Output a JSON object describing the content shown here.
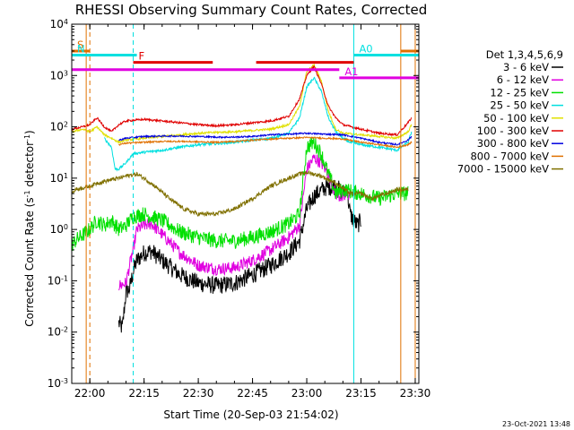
{
  "chart_data": {
    "type": "line",
    "title": "RHESSI Observing Summary Count Rates, Corrected",
    "xlabel": "Start Time (20-Sep-03 21:54:02)",
    "ylabel_main": "Corrected Count Rate (s",
    "ylabel_sup1": "-1",
    "ylabel_mid": " detector",
    "ylabel_sup2": "-1",
    "ylabel_end": ")",
    "y_scale": "log",
    "xlim": [
      "21:55",
      "23:31"
    ],
    "ylim": [
      0.001,
      10000
    ],
    "x_ticks": [
      "22:00",
      "22:15",
      "22:30",
      "22:45",
      "23:00",
      "23:15",
      "23:30"
    ],
    "y_ticks": [
      {
        "base": "10",
        "exp": "-3",
        "value": 0.001
      },
      {
        "base": "10",
        "exp": "-2",
        "value": 0.01
      },
      {
        "base": "10",
        "exp": "-1",
        "value": 0.1
      },
      {
        "base": "10",
        "exp": "0",
        "value": 1
      },
      {
        "base": "10",
        "exp": "1",
        "value": 10
      },
      {
        "base": "10",
        "exp": "2",
        "value": 100
      },
      {
        "base": "10",
        "exp": "3",
        "value": 1000
      },
      {
        "base": "10",
        "exp": "4",
        "value": 10000
      }
    ],
    "legend_title": "Det 1,3,4,5,6,9",
    "legend_position": "right",
    "footer_stamp": "23-Oct-2021 13:48",
    "series": [
      {
        "name": "3 - 6 keV",
        "color": "#000000",
        "noise": 0.35,
        "points": [
          [
            "22:08",
            0.015
          ],
          [
            "22:09",
            0.012
          ],
          [
            "22:10",
            0.06
          ],
          [
            "22:11",
            0.07
          ],
          [
            "22:12",
            0.15
          ],
          [
            "22:13",
            0.25
          ],
          [
            "22:15",
            0.35
          ],
          [
            "22:17",
            0.38
          ],
          [
            "22:20",
            0.25
          ],
          [
            "22:25",
            0.13
          ],
          [
            "22:30",
            0.09
          ],
          [
            "22:35",
            0.08
          ],
          [
            "22:40",
            0.09
          ],
          [
            "22:45",
            0.13
          ],
          [
            "22:50",
            0.2
          ],
          [
            "22:55",
            0.35
          ],
          [
            "22:58",
            0.6
          ],
          [
            "23:00",
            2.5
          ],
          [
            "23:02",
            4.5
          ],
          [
            "23:05",
            6.5
          ],
          [
            "23:08",
            7
          ],
          [
            "23:10",
            5
          ],
          [
            "23:11",
            7
          ],
          [
            "23:12",
            2
          ],
          [
            "23:13",
            1.5
          ],
          [
            "23:14",
            1.2
          ],
          [
            "23:15",
            1.5
          ]
        ]
      },
      {
        "name": "6 - 12 keV",
        "color": "#e000e0",
        "noise": 0.25,
        "points": [
          [
            "22:08",
            0.08
          ],
          [
            "22:10",
            0.09
          ],
          [
            "22:11",
            0.2
          ],
          [
            "22:12",
            0.4
          ],
          [
            "22:13",
            1.0
          ],
          [
            "22:15",
            1.2
          ],
          [
            "22:17",
            1.3
          ],
          [
            "22:20",
            0.8
          ],
          [
            "22:25",
            0.35
          ],
          [
            "22:30",
            0.2
          ],
          [
            "22:35",
            0.17
          ],
          [
            "22:40",
            0.18
          ],
          [
            "22:45",
            0.25
          ],
          [
            "22:50",
            0.4
          ],
          [
            "22:55",
            0.7
          ],
          [
            "22:58",
            1.2
          ],
          [
            "23:00",
            15
          ],
          [
            "23:02",
            25
          ],
          [
            "23:04",
            20
          ],
          [
            "23:06",
            12
          ],
          [
            "23:08",
            5
          ],
          [
            "23:10",
            4
          ],
          [
            "23:12",
            5
          ]
        ]
      },
      {
        "name": "12 - 25 keV",
        "color": "#00e000",
        "noise": 0.3,
        "points": [
          [
            "21:55",
            0.5
          ],
          [
            "21:56",
            0.6
          ],
          [
            "22:00",
            1.0
          ],
          [
            "22:02",
            1.5
          ],
          [
            "22:04",
            1.2
          ],
          [
            "22:06",
            1.5
          ],
          [
            "22:08",
            1.0
          ],
          [
            "22:10",
            1.2
          ],
          [
            "22:12",
            1.8
          ],
          [
            "22:15",
            2.0
          ],
          [
            "22:20",
            1.5
          ],
          [
            "22:25",
            0.9
          ],
          [
            "22:30",
            0.7
          ],
          [
            "22:35",
            0.6
          ],
          [
            "22:40",
            0.6
          ],
          [
            "22:45",
            0.7
          ],
          [
            "22:50",
            0.9
          ],
          [
            "22:55",
            1.3
          ],
          [
            "22:58",
            2
          ],
          [
            "23:00",
            40
          ],
          [
            "23:02",
            50
          ],
          [
            "23:04",
            30
          ],
          [
            "23:06",
            12
          ],
          [
            "23:08",
            5
          ],
          [
            "23:10",
            6
          ],
          [
            "23:15",
            5
          ],
          [
            "23:20",
            4
          ],
          [
            "23:25",
            5
          ],
          [
            "23:28",
            5
          ]
        ]
      },
      {
        "name": "25 - 50 keV",
        "color": "#00e0e0",
        "noise": 0.05,
        "points": [
          [
            "22:04",
            60
          ],
          [
            "22:06",
            40
          ],
          [
            "22:07",
            15
          ],
          [
            "22:08",
            15
          ],
          [
            "22:10",
            20
          ],
          [
            "22:12",
            30
          ],
          [
            "22:15",
            32
          ],
          [
            "22:20",
            35
          ],
          [
            "22:25",
            40
          ],
          [
            "22:30",
            45
          ],
          [
            "22:35",
            47
          ],
          [
            "22:40",
            50
          ],
          [
            "22:45",
            55
          ],
          [
            "22:50",
            60
          ],
          [
            "22:55",
            75
          ],
          [
            "22:58",
            150
          ],
          [
            "23:00",
            600
          ],
          [
            "23:02",
            900
          ],
          [
            "23:04",
            500
          ],
          [
            "23:06",
            150
          ],
          [
            "23:08",
            80
          ],
          [
            "23:10",
            60
          ],
          [
            "23:12",
            50
          ],
          [
            "23:15",
            45
          ],
          [
            "23:20",
            40
          ],
          [
            "23:25",
            35
          ],
          [
            "23:28",
            50
          ],
          [
            "23:29",
            80
          ]
        ]
      },
      {
        "name": "50 - 100 keV",
        "color": "#e0e000",
        "noise": 0.04,
        "points": [
          [
            "21:55",
            80
          ],
          [
            "21:58",
            90
          ],
          [
            "22:00",
            80
          ],
          [
            "22:02",
            100
          ],
          [
            "22:04",
            70
          ],
          [
            "22:06",
            60
          ],
          [
            "22:08",
            50
          ],
          [
            "22:10",
            55
          ],
          [
            "22:15",
            60
          ],
          [
            "22:20",
            65
          ],
          [
            "22:25",
            70
          ],
          [
            "22:30",
            75
          ],
          [
            "22:35",
            78
          ],
          [
            "22:40",
            80
          ],
          [
            "22:45",
            85
          ],
          [
            "22:50",
            90
          ],
          [
            "22:55",
            110
          ],
          [
            "22:58",
            250
          ],
          [
            "23:00",
            1200
          ],
          [
            "23:02",
            1600
          ],
          [
            "23:04",
            800
          ],
          [
            "23:06",
            200
          ],
          [
            "23:08",
            90
          ],
          [
            "23:10",
            75
          ],
          [
            "23:15",
            70
          ],
          [
            "23:20",
            65
          ],
          [
            "23:25",
            60
          ],
          [
            "23:28",
            80
          ],
          [
            "23:29",
            110
          ]
        ]
      },
      {
        "name": "100 - 300 keV",
        "color": "#e00000",
        "noise": 0.04,
        "points": [
          [
            "21:55",
            90
          ],
          [
            "21:58",
            100
          ],
          [
            "22:00",
            110
          ],
          [
            "22:02",
            150
          ],
          [
            "22:04",
            100
          ],
          [
            "22:06",
            80
          ],
          [
            "22:08",
            110
          ],
          [
            "22:10",
            130
          ],
          [
            "22:15",
            140
          ],
          [
            "22:20",
            130
          ],
          [
            "22:25",
            120
          ],
          [
            "22:30",
            110
          ],
          [
            "22:35",
            105
          ],
          [
            "22:40",
            110
          ],
          [
            "22:45",
            120
          ],
          [
            "22:50",
            130
          ],
          [
            "22:55",
            160
          ],
          [
            "22:58",
            350
          ],
          [
            "23:00",
            1000
          ],
          [
            "23:02",
            1500
          ],
          [
            "23:04",
            700
          ],
          [
            "23:06",
            250
          ],
          [
            "23:08",
            150
          ],
          [
            "23:10",
            110
          ],
          [
            "23:15",
            90
          ],
          [
            "23:20",
            75
          ],
          [
            "23:25",
            70
          ],
          [
            "23:28",
            120
          ],
          [
            "23:29",
            150
          ]
        ]
      },
      {
        "name": "300 - 800 keV",
        "color": "#0000e0",
        "noise": 0.03,
        "points": [
          [
            "22:08",
            55
          ],
          [
            "22:10",
            60
          ],
          [
            "22:15",
            65
          ],
          [
            "22:20",
            66
          ],
          [
            "22:25",
            66
          ],
          [
            "22:30",
            65
          ],
          [
            "22:35",
            63
          ],
          [
            "22:40",
            63
          ],
          [
            "22:45",
            65
          ],
          [
            "22:50",
            70
          ],
          [
            "22:55",
            72
          ],
          [
            "23:00",
            75
          ],
          [
            "23:05",
            72
          ],
          [
            "23:10",
            70
          ],
          [
            "23:15",
            60
          ],
          [
            "23:20",
            50
          ],
          [
            "23:25",
            45
          ],
          [
            "23:28",
            55
          ],
          [
            "23:29",
            65
          ]
        ]
      },
      {
        "name": "800 - 7000 keV",
        "color": "#e07000",
        "noise": 0.03,
        "points": [
          [
            "22:08",
            45
          ],
          [
            "22:10",
            48
          ],
          [
            "22:15",
            50
          ],
          [
            "22:20",
            52
          ],
          [
            "22:25",
            52
          ],
          [
            "22:30",
            51
          ],
          [
            "22:35",
            50
          ],
          [
            "22:40",
            52
          ],
          [
            "22:45",
            55
          ],
          [
            "22:50",
            58
          ],
          [
            "22:55",
            60
          ],
          [
            "23:00",
            62
          ],
          [
            "23:05",
            60
          ],
          [
            "23:10",
            58
          ],
          [
            "23:15",
            50
          ],
          [
            "23:20",
            45
          ],
          [
            "23:25",
            40
          ],
          [
            "23:28",
            45
          ],
          [
            "23:29",
            50
          ]
        ]
      },
      {
        "name": "7000 - 15000 keV",
        "color": "#807000",
        "noise": 0.08,
        "points": [
          [
            "21:55",
            5
          ],
          [
            "21:56",
            6
          ],
          [
            "22:00",
            7
          ],
          [
            "22:02",
            8
          ],
          [
            "22:05",
            9
          ],
          [
            "22:08",
            10
          ],
          [
            "22:10",
            11
          ],
          [
            "22:13",
            12
          ],
          [
            "22:15",
            10
          ],
          [
            "22:18",
            7
          ],
          [
            "22:22",
            4
          ],
          [
            "22:26",
            2.5
          ],
          [
            "22:30",
            2
          ],
          [
            "22:35",
            2
          ],
          [
            "22:40",
            2.5
          ],
          [
            "22:45",
            4
          ],
          [
            "22:50",
            7
          ],
          [
            "22:55",
            10
          ],
          [
            "22:58",
            12
          ],
          [
            "23:00",
            13
          ],
          [
            "23:04",
            11
          ],
          [
            "23:08",
            8
          ],
          [
            "23:12",
            5
          ],
          [
            "23:15",
            5
          ],
          [
            "23:18",
            4
          ],
          [
            "23:22",
            5
          ],
          [
            "23:25",
            6
          ],
          [
            "23:28",
            6
          ]
        ]
      }
    ],
    "annotations": [
      {
        "label": "S",
        "color": "#e07000",
        "start": "21:55",
        "end": "22:00",
        "level": 3000
      },
      {
        "label": "N",
        "color": "#00e0e0",
        "start": "21:55",
        "end": "22:13",
        "level": 2500
      },
      {
        "label": "F",
        "color": "#e00000",
        "start": "22:12",
        "end": "22:34",
        "level": 1800
      },
      {
        "label": "",
        "color": "#e00000",
        "start": "22:46",
        "end": "23:13",
        "level": 1800
      },
      {
        "label": "",
        "color": "#e000e0",
        "start": "21:55",
        "end": "23:09",
        "level": 1300
      },
      {
        "label": "A1",
        "color": "#e000e0",
        "start": "23:09",
        "end": "23:31",
        "level": 900
      },
      {
        "label": "A0",
        "color": "#00e0e0",
        "start": "23:13",
        "end": "23:31",
        "level": 2500
      },
      {
        "label": "",
        "color": "#e07000",
        "start": "23:26",
        "end": "23:31",
        "level": 3000
      }
    ],
    "vlines": [
      {
        "time": "21:55",
        "color": "#00e0e0",
        "style": "solid"
      },
      {
        "time": "21:59",
        "color": "#e07000",
        "style": "solid"
      },
      {
        "time": "22:00",
        "color": "#e07000",
        "style": "dashed"
      },
      {
        "time": "22:12",
        "color": "#00e0e0",
        "style": "dashed"
      },
      {
        "time": "23:13",
        "color": "#00e0e0",
        "style": "solid"
      },
      {
        "time": "23:26",
        "color": "#e07000",
        "style": "solid"
      },
      {
        "time": "23:30",
        "color": "#e07000",
        "style": "solid"
      },
      {
        "time": "23:31",
        "color": "#00e0e0",
        "style": "dashed"
      }
    ]
  }
}
